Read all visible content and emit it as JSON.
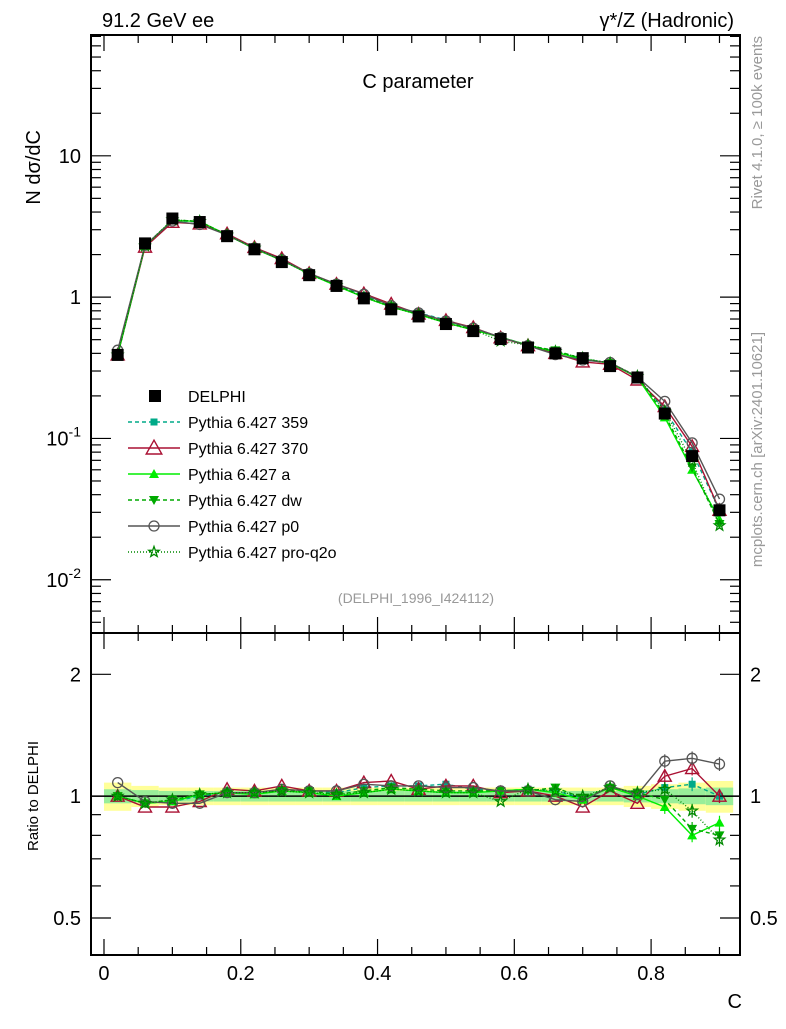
{
  "chart_data": {
    "type": "line",
    "header_left": "91.2 GeV ee",
    "header_right": "γ*/Z (Hadronic)",
    "title": "C parameter",
    "ylabel": "N  dσ/dC",
    "xlabel": "C",
    "ratio_ylabel": "Ratio to DELPHI",
    "analysis_id": "(DELPHI_1996_I424112)",
    "side_text_top": "Rivet 4.1.0, ≥ 100k events",
    "side_text_bottom": "mcplots.cern.ch [arXiv:2401.10621]",
    "xlim": [
      -0.019,
      0.93
    ],
    "ylim": [
      0.0042,
      71.6
    ],
    "yscale": "log",
    "ratio_ylim": [
      0.405,
      2.53
    ],
    "ratio_yscale": "log",
    "x_ticks": [
      "0",
      "0.2",
      "0.4",
      "0.6",
      "0.8"
    ],
    "y_ticks": [
      "10",
      "1",
      "10^-1",
      "10^-2"
    ],
    "ratio_y_ticks": [
      "2",
      "1",
      "0.5"
    ],
    "legend_position": "bottom-left",
    "x": [
      0.02,
      0.06,
      0.1,
      0.14,
      0.18,
      0.22,
      0.26,
      0.3,
      0.34,
      0.38,
      0.42,
      0.46,
      0.5,
      0.54,
      0.58,
      0.62,
      0.66,
      0.7,
      0.74,
      0.78,
      0.82,
      0.86,
      0.9
    ],
    "data": {
      "name": "DELPHI",
      "color": "#000000",
      "values": [
        0.39,
        2.4,
        3.6,
        3.4,
        2.7,
        2.18,
        1.77,
        1.43,
        1.2,
        0.98,
        0.82,
        0.73,
        0.645,
        0.575,
        0.505,
        0.44,
        0.4,
        0.37,
        0.325,
        0.27,
        0.15,
        0.075,
        0.031
      ],
      "band_inner": [
        0.04,
        0.035,
        0.03,
        0.03,
        0.03,
        0.03,
        0.03,
        0.03,
        0.03,
        0.03,
        0.03,
        0.03,
        0.03,
        0.03,
        0.03,
        0.03,
        0.03,
        0.03,
        0.03,
        0.035,
        0.04,
        0.045,
        0.05
      ],
      "band_outer": [
        0.08,
        0.06,
        0.05,
        0.05,
        0.05,
        0.05,
        0.05,
        0.05,
        0.05,
        0.05,
        0.05,
        0.05,
        0.05,
        0.05,
        0.05,
        0.05,
        0.05,
        0.05,
        0.05,
        0.06,
        0.07,
        0.08,
        0.09
      ]
    },
    "series": [
      {
        "name": "Pythia 6.427 359",
        "color": "#00aa88",
        "dash": "4,3",
        "marker": "square",
        "ratio": [
          1.0,
          0.96,
          0.97,
          1.0,
          1.02,
          1.02,
          1.03,
          1.03,
          1.02,
          1.05,
          1.06,
          1.06,
          1.07,
          1.04,
          1.03,
          1.04,
          1.03,
          0.99,
          1.05,
          1.01,
          1.05,
          1.07,
          1.0
        ]
      },
      {
        "name": "Pythia 6.427 370",
        "color": "#aa1133",
        "dash": "",
        "marker": "triangle-open",
        "ratio": [
          1.0,
          0.94,
          0.94,
          0.97,
          1.04,
          1.03,
          1.06,
          1.03,
          1.03,
          1.08,
          1.09,
          1.04,
          1.06,
          1.06,
          1.02,
          1.03,
          1.0,
          0.94,
          1.03,
          0.96,
          1.12,
          1.17,
          1.0
        ]
      },
      {
        "name": "Pythia 6.427 a",
        "color": "#00ee00",
        "dash": "",
        "marker": "triangle",
        "ratio": [
          1.0,
          0.96,
          0.97,
          1.01,
          1.02,
          1.01,
          1.03,
          1.02,
          1.0,
          1.02,
          1.04,
          1.03,
          1.02,
          1.02,
          1.03,
          1.04,
          1.02,
          0.98,
          1.05,
          1.0,
          0.94,
          0.8,
          0.86
        ]
      },
      {
        "name": "Pythia 6.427 dw",
        "color": "#00aa00",
        "dash": "4,3",
        "marker": "triangle-down",
        "ratio": [
          1.0,
          0.96,
          0.98,
          1.01,
          1.02,
          1.02,
          1.03,
          1.03,
          1.01,
          1.03,
          1.05,
          1.04,
          1.03,
          1.03,
          1.03,
          1.03,
          1.05,
          0.99,
          1.05,
          1.02,
          0.98,
          0.83,
          0.8
        ]
      },
      {
        "name": "Pythia 6.427 p0",
        "color": "#555555",
        "dash": "",
        "marker": "circle-open",
        "ratio": [
          1.08,
          0.97,
          0.96,
          0.96,
          1.02,
          1.02,
          1.04,
          1.03,
          1.03,
          1.07,
          1.06,
          1.06,
          1.05,
          1.05,
          1.03,
          1.03,
          0.98,
          0.97,
          1.06,
          1.01,
          1.22,
          1.24,
          1.2
        ]
      },
      {
        "name": "Pythia 6.427 pro-q2o",
        "color": "#008800",
        "dash": "1,2",
        "marker": "star",
        "ratio": [
          1.0,
          0.96,
          0.98,
          1.01,
          1.02,
          1.02,
          1.03,
          1.02,
          1.01,
          1.02,
          1.04,
          1.03,
          1.02,
          1.02,
          0.97,
          1.04,
          1.03,
          1.0,
          1.05,
          1.02,
          1.04,
          0.92,
          0.78
        ]
      }
    ]
  }
}
